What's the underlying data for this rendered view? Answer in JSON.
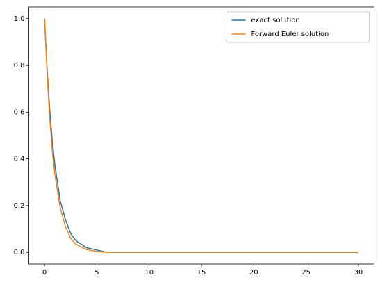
{
  "chart_data": {
    "type": "line",
    "x": [
      0,
      0.25,
      0.5,
      0.75,
      1,
      1.5,
      2,
      2.5,
      3,
      4,
      5,
      6,
      7,
      8,
      10,
      15,
      20,
      25,
      30
    ],
    "series": [
      {
        "name": "exact solution",
        "color": "#1f77b4",
        "values": [
          1,
          0.78,
          0.61,
          0.47,
          0.37,
          0.22,
          0.14,
          0.08,
          0.05,
          0.02,
          0.01,
          0,
          0,
          0,
          0,
          0,
          0,
          0,
          0
        ]
      },
      {
        "name": "Forward Euler solution",
        "color": "#ff7f0e",
        "values": [
          1,
          0.76,
          0.57,
          0.43,
          0.33,
          0.19,
          0.11,
          0.06,
          0.035,
          0.012,
          0.004,
          0,
          0,
          0,
          0,
          0,
          0,
          0,
          0
        ]
      }
    ],
    "xlim": [
      -1.5,
      31.5
    ],
    "xticks": [
      0,
      5,
      10,
      15,
      20,
      25,
      30
    ],
    "ylim": [
      -0.05,
      1.05
    ],
    "yticks": [
      {
        "value": 0,
        "label": "0.0"
      },
      {
        "value": 0.2,
        "label": "0.2"
      },
      {
        "value": 0.4,
        "label": "0.4"
      },
      {
        "value": 0.6,
        "label": "0.6"
      },
      {
        "value": 0.8,
        "label": "0.8"
      },
      {
        "value": 1,
        "label": "1.0"
      }
    ],
    "legend": "upper right"
  }
}
